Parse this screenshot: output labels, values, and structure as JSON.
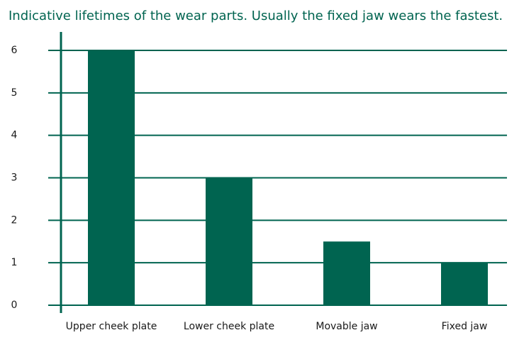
{
  "chart_data": {
    "type": "bar",
    "title": "Indicative lifetimes of the wear parts. Usually the fixed jaw wears the fastest.",
    "categories": [
      "Upper cheek plate",
      "Lower cheek plate",
      "Movable jaw",
      "Fixed jaw"
    ],
    "values": [
      6,
      3,
      1.5,
      1
    ],
    "color": "#006450",
    "ylim": [
      0,
      6
    ],
    "yticks": [
      0,
      1,
      2,
      3,
      4,
      5,
      6
    ],
    "grid": true
  }
}
